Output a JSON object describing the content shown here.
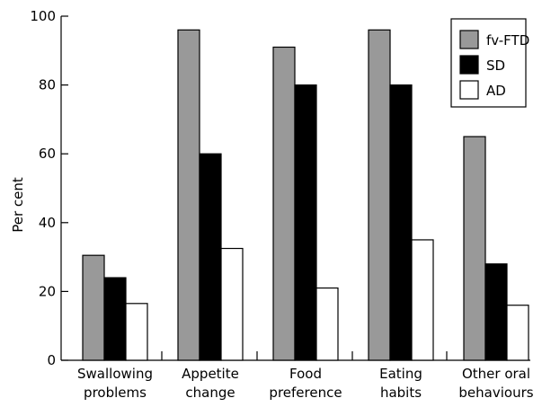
{
  "chart_data": {
    "type": "bar",
    "title": "",
    "xlabel": "",
    "ylabel": "Per cent",
    "ylim": [
      0,
      100
    ],
    "yticks": [
      "0",
      "20",
      "40",
      "60",
      "80",
      "100"
    ],
    "categories": [
      [
        "Swallowing",
        "problems"
      ],
      [
        "Appetite",
        "change"
      ],
      [
        "Food",
        "preference"
      ],
      [
        "Eating",
        "habits"
      ],
      [
        "Other oral",
        "behaviours"
      ]
    ],
    "series": [
      {
        "name": "fv-FTD",
        "color": "#999999",
        "values": [
          30.5,
          96,
          91,
          96,
          65
        ]
      },
      {
        "name": "SD",
        "color": "#000000",
        "values": [
          24,
          60,
          80,
          80,
          28
        ]
      },
      {
        "name": "AD",
        "color": "#ffffff",
        "values": [
          16.5,
          32.5,
          21,
          35,
          16
        ]
      }
    ],
    "legend_position": "top-right",
    "grid": false
  }
}
